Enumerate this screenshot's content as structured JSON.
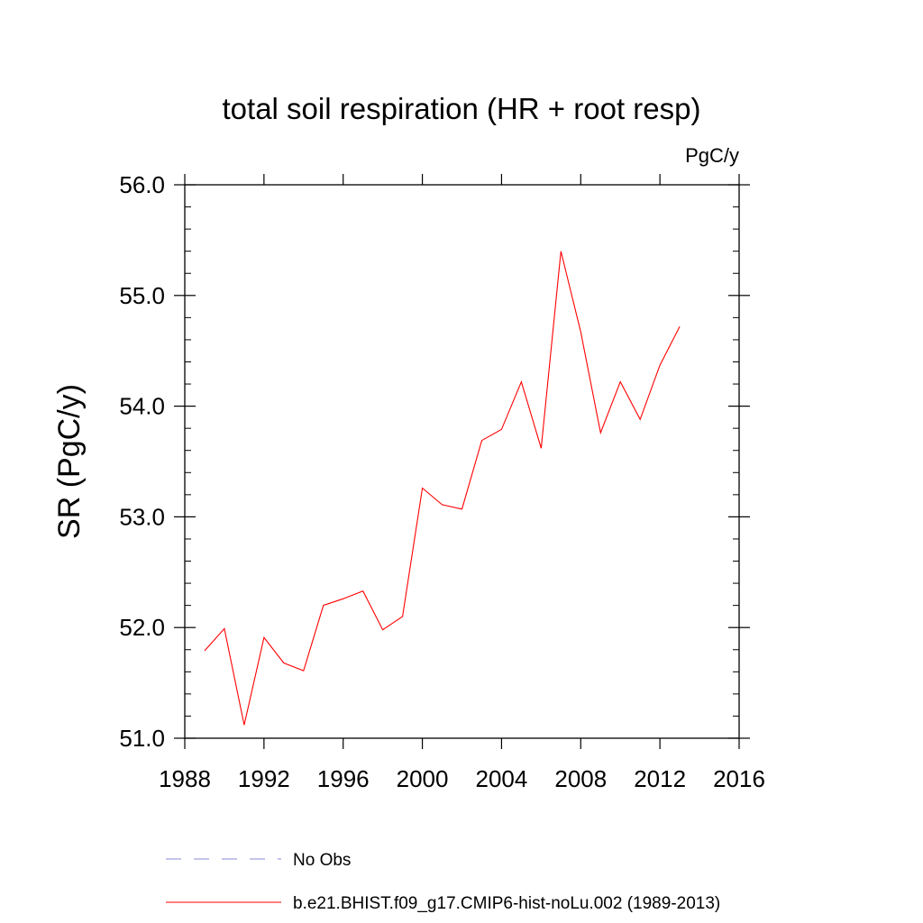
{
  "chart_data": {
    "type": "line",
    "title": "total soil respiration (HR + root resp)",
    "units": "PgC/y",
    "ylabel": "SR  (PgC/y)",
    "xlabel": "",
    "xlim": [
      1988,
      2016
    ],
    "ylim": [
      51.0,
      56.0
    ],
    "x_ticks": [
      1988,
      1992,
      1996,
      2000,
      2004,
      2008,
      2012,
      2016
    ],
    "x_tick_labels": [
      "1988",
      "1992",
      "1996",
      "2000",
      "2004",
      "2008",
      "2012",
      "2016"
    ],
    "y_ticks": [
      51.0,
      52.0,
      53.0,
      54.0,
      55.0,
      56.0
    ],
    "y_tick_labels": [
      "51.0",
      "52.0",
      "53.0",
      "54.0",
      "55.0",
      "56.0"
    ],
    "grid": false,
    "legend_position": "bottom",
    "series": [
      {
        "name": "No Obs",
        "color": "#8a8ad8",
        "style": "dashed",
        "x": [],
        "values": []
      },
      {
        "name": "b.e21.BHIST.f09_g17.CMIP6-hist-noLu.002 (1989-2013)",
        "color": "#ff0000",
        "style": "solid",
        "x": [
          1989,
          1990,
          1991,
          1992,
          1993,
          1994,
          1995,
          1996,
          1997,
          1998,
          1999,
          2000,
          2001,
          2002,
          2003,
          2004,
          2005,
          2006,
          2007,
          2008,
          2009,
          2010,
          2011,
          2012,
          2013
        ],
        "values": [
          51.79,
          51.99,
          51.12,
          51.91,
          51.68,
          51.61,
          52.2,
          52.26,
          52.33,
          51.98,
          52.1,
          53.26,
          53.11,
          53.07,
          53.69,
          53.79,
          54.22,
          53.62,
          55.4,
          54.67,
          53.76,
          54.22,
          53.88,
          54.37,
          54.72
        ]
      }
    ]
  }
}
